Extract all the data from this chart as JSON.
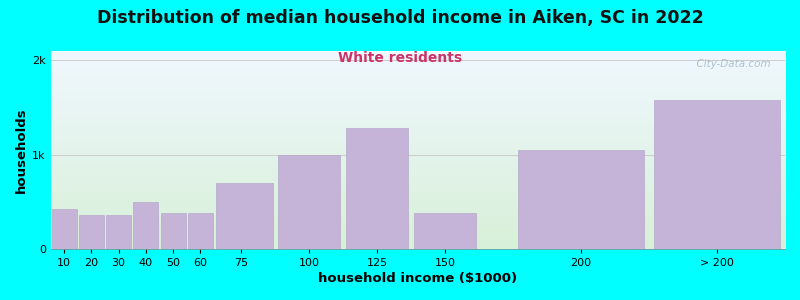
{
  "title": "Distribution of median household income in Aiken, SC in 2022",
  "subtitle": "White residents",
  "xlabel": "household income ($1000)",
  "ylabel": "households",
  "background_color": "#00FFFF",
  "bar_color": "#c5b3d8",
  "bar_edge_color": "#b0a0c8",
  "title_fontsize": 12.5,
  "subtitle_fontsize": 10,
  "subtitle_color": "#cc3366",
  "categories": [
    "10",
    "20",
    "30",
    "40",
    "50",
    "60",
    "75",
    "100",
    "125",
    "150",
    "200",
    "> 200"
  ],
  "values": [
    420,
    360,
    360,
    500,
    385,
    385,
    700,
    1000,
    1280,
    375,
    1050,
    1580
  ],
  "bin_lefts": [
    5,
    15,
    25,
    35,
    45,
    55,
    65,
    87.5,
    112.5,
    137.5,
    175,
    225
  ],
  "bin_widths": [
    10,
    10,
    10,
    10,
    10,
    10,
    22.5,
    25,
    25,
    25,
    50,
    50
  ],
  "tick_positions": [
    10,
    20,
    30,
    40,
    50,
    60,
    75,
    100,
    125,
    150,
    200
  ],
  "xlim": [
    5,
    275
  ],
  "ylim": [
    0,
    2100
  ],
  "ytick_labels": [
    "0",
    "1k",
    "2k"
  ],
  "ytick_values": [
    0,
    1000,
    2000
  ],
  "watermark": "  City-Data.com"
}
